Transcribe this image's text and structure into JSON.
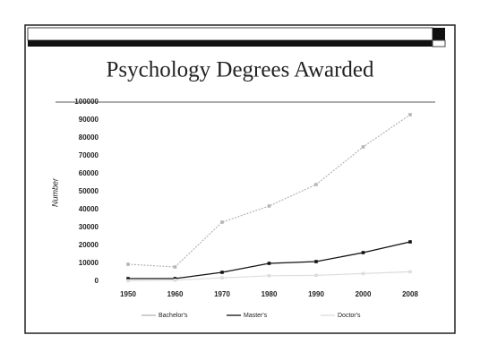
{
  "chart_data": {
    "type": "line",
    "title": "Psychology Degrees Awarded",
    "y_label": "Number",
    "categories": [
      "1950",
      "1960",
      "1970",
      "1980",
      "1990",
      "2000",
      "2008"
    ],
    "series": [
      {
        "name": "Bachelor's",
        "color": "#b5b5b5",
        "values": [
          9500,
          8000,
          33000,
          42000,
          54000,
          75000,
          93000
        ]
      },
      {
        "name": "Master's",
        "color": "#111111",
        "values": [
          1500,
          1500,
          5000,
          10000,
          11000,
          16000,
          22000
        ]
      },
      {
        "name": "Doctor's",
        "color": "#dddddd",
        "values": [
          300,
          600,
          1900,
          3100,
          3300,
          4300,
          5300
        ]
      }
    ],
    "ylim": [
      0,
      100000
    ],
    "yticks": [
      0,
      10000,
      20000,
      30000,
      40000,
      50000,
      60000,
      70000,
      80000,
      90000,
      100000
    ]
  }
}
